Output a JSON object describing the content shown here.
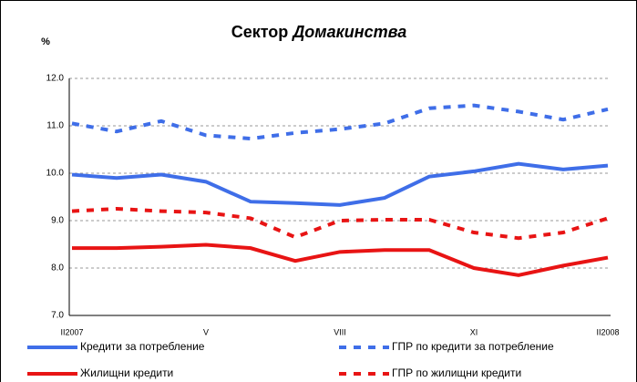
{
  "chart_data": {
    "type": "line",
    "title": [
      "Сектор",
      "Домакинства"
    ],
    "y_label": "%",
    "categories": [
      "II2007",
      null,
      null,
      "V",
      null,
      null,
      "VIII",
      null,
      null,
      "XI",
      null,
      null,
      "II2008"
    ],
    "ylim": [
      7,
      12
    ],
    "yticks": [
      {
        "value": 7,
        "label": "7.0"
      },
      {
        "value": 8,
        "label": "8.0"
      },
      {
        "value": 9,
        "label": "9.0"
      },
      {
        "value": 10,
        "label": "10.0"
      },
      {
        "value": 11,
        "label": "11.0"
      },
      {
        "value": 12,
        "label": "12.0"
      }
    ],
    "grid": true,
    "series": [
      {
        "name": "Кредити за потребление",
        "color": "#3f6ee8",
        "dashed": false,
        "values": [
          9.97,
          9.9,
          9.97,
          9.82,
          9.4,
          9.37,
          9.33,
          9.48,
          9.93,
          10.04,
          10.2,
          10.08,
          10.16
        ]
      },
      {
        "name": "ГПР по кредити за потребление",
        "color": "#3f6ee8",
        "dashed": true,
        "values": [
          11.05,
          10.88,
          11.1,
          10.8,
          10.73,
          10.85,
          10.93,
          11.05,
          11.37,
          11.43,
          11.3,
          11.13,
          11.35
        ]
      },
      {
        "name": "Жилищни кредити",
        "color": "#e81414",
        "dashed": false,
        "values": [
          8.42,
          8.42,
          8.45,
          8.49,
          8.42,
          8.15,
          8.34,
          8.38,
          8.38,
          8.0,
          7.85,
          8.05,
          8.22
        ]
      },
      {
        "name": "ГПР по жилищни кредити",
        "color": "#e81414",
        "dashed": true,
        "values": [
          9.2,
          9.25,
          9.2,
          9.17,
          9.05,
          8.65,
          9.0,
          9.02,
          9.02,
          8.75,
          8.63,
          8.75,
          9.05
        ]
      }
    ]
  }
}
